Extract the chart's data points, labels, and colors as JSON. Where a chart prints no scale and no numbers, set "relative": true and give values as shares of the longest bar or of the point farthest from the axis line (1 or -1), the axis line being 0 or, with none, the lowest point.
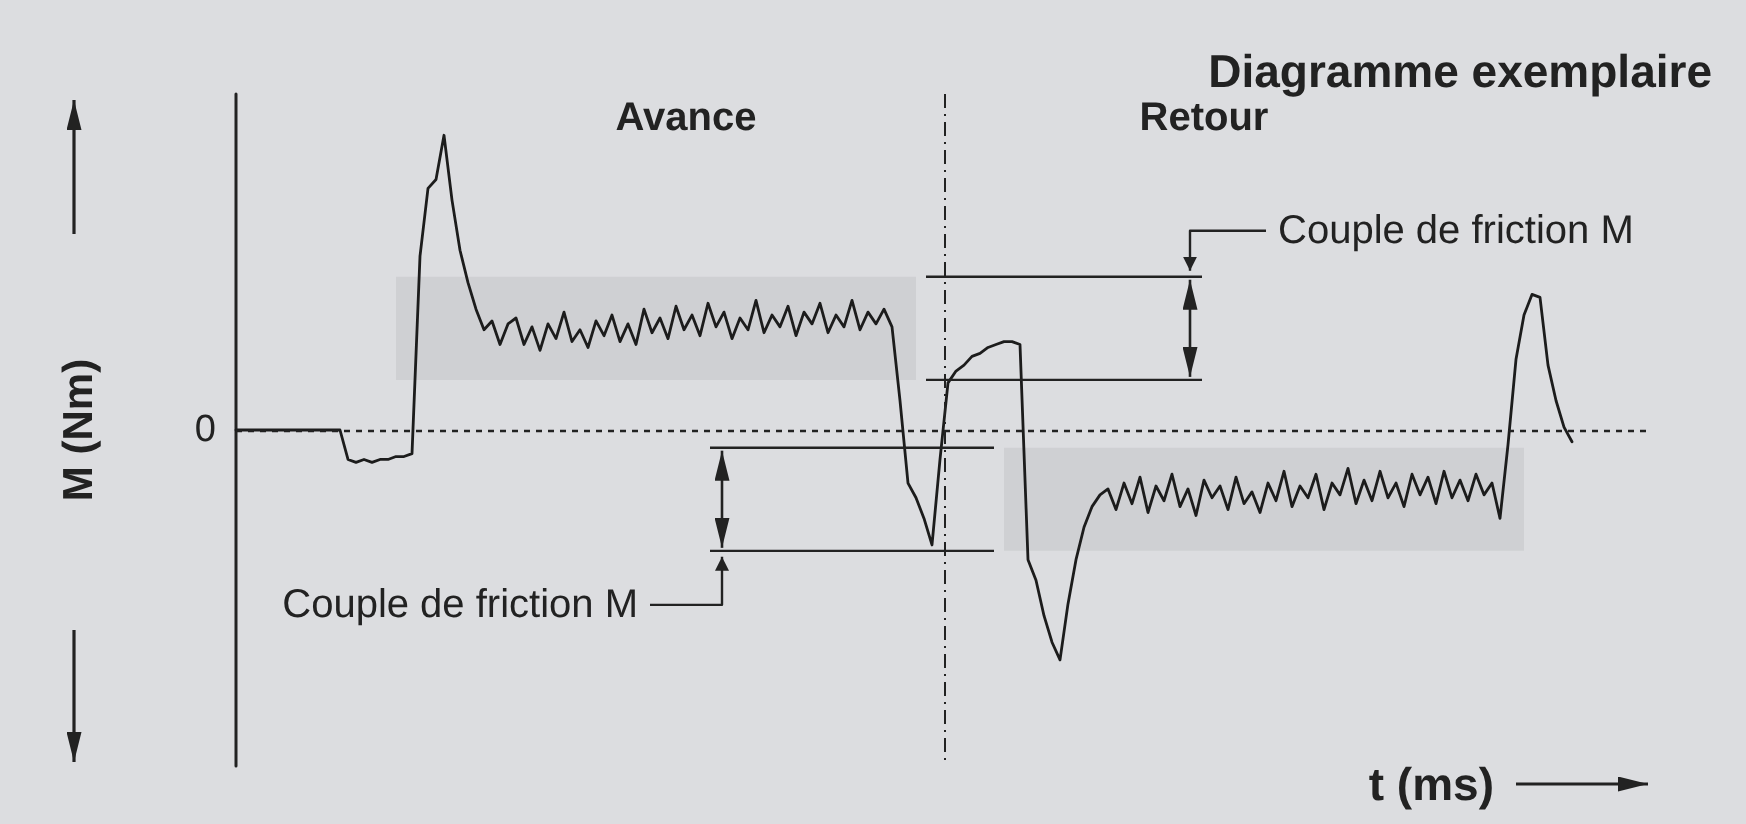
{
  "chart_data": {
    "type": "line",
    "title": "Diagramme exemplaire",
    "xlabel": "t (ms)",
    "ylabel": "M (Nm)",
    "annotations": [
      "Avance",
      "Retour",
      "Couple de friction M",
      "Couple de friction M"
    ],
    "relative": true,
    "color": "#1c1c1c",
    "categories": [
      null,
      null,
      null,
      null,
      null,
      null,
      null,
      null,
      null,
      null,
      null,
      null,
      null,
      null,
      null,
      null,
      null,
      null,
      null,
      null,
      null,
      null,
      null,
      null,
      null,
      null,
      null,
      null,
      null,
      null,
      null,
      null,
      null,
      null,
      null,
      null,
      null,
      null,
      null,
      null,
      null,
      null,
      null,
      null,
      null,
      null,
      null,
      null,
      null,
      null,
      null,
      null,
      null,
      null,
      null,
      null,
      null,
      null,
      null,
      null,
      null,
      null,
      null,
      null,
      null,
      null,
      null,
      null,
      null,
      null,
      null,
      null,
      null,
      null,
      null,
      null,
      null,
      null,
      null,
      null,
      null,
      null,
      null,
      null,
      null,
      null,
      null,
      null,
      null,
      null,
      null,
      null,
      null,
      null,
      null,
      null,
      null,
      null,
      null,
      null,
      null,
      null,
      null,
      null,
      null,
      null,
      null,
      null,
      null,
      null,
      null,
      null,
      null,
      null,
      null,
      null,
      null,
      null,
      null,
      null,
      null,
      null,
      null,
      null,
      null,
      null,
      null,
      null,
      null,
      null,
      null,
      null,
      null,
      null,
      null,
      null,
      null,
      null,
      null,
      null,
      null,
      null,
      null,
      null,
      null,
      null,
      null,
      null,
      null,
      null,
      null,
      null,
      null,
      null,
      null,
      null,
      null,
      null,
      null,
      null,
      null,
      null,
      null,
      null,
      null,
      null,
      null,
      null,
      null,
      null,
      null,
      null,
      null,
      null,
      null,
      null,
      null,
      null
    ],
    "values": [
      0,
      0,
      0,
      0,
      0,
      0,
      0,
      0,
      0,
      0,
      0,
      0,
      0,
      0,
      -0.1,
      -0.11,
      -0.1,
      -0.11,
      -0.1,
      -0.1,
      -0.09,
      -0.09,
      -0.08,
      0.59,
      0.82,
      0.85,
      1,
      0.78,
      0.61,
      0.5,
      0.41,
      0.34,
      0.37,
      0.29,
      0.36,
      0.38,
      0.29,
      0.35,
      0.27,
      0.36,
      0.31,
      0.4,
      0.3,
      0.34,
      0.28,
      0.37,
      0.32,
      0.39,
      0.3,
      0.36,
      0.29,
      0.41,
      0.33,
      0.38,
      0.31,
      0.42,
      0.34,
      0.39,
      0.32,
      0.43,
      0.35,
      0.4,
      0.31,
      0.38,
      0.34,
      0.44,
      0.33,
      0.39,
      0.35,
      0.42,
      0.32,
      0.4,
      0.36,
      0.43,
      0.33,
      0.39,
      0.35,
      0.44,
      0.34,
      0.4,
      0.36,
      0.41,
      0.35,
      0.1,
      -0.18,
      -0.23,
      -0.3,
      -0.39,
      -0.1,
      0.16,
      0.2,
      0.22,
      0.25,
      0.26,
      0.28,
      0.29,
      0.3,
      0.3,
      0.29,
      -0.44,
      -0.51,
      -0.63,
      -0.72,
      -0.78,
      -0.59,
      -0.44,
      -0.33,
      -0.26,
      -0.22,
      -0.2,
      -0.27,
      -0.18,
      -0.25,
      -0.16,
      -0.28,
      -0.19,
      -0.24,
      -0.15,
      -0.26,
      -0.2,
      -0.29,
      -0.17,
      -0.23,
      -0.19,
      -0.27,
      -0.16,
      -0.25,
      -0.21,
      -0.28,
      -0.18,
      -0.24,
      -0.14,
      -0.26,
      -0.19,
      -0.23,
      -0.15,
      -0.27,
      -0.18,
      -0.22,
      -0.13,
      -0.25,
      -0.17,
      -0.24,
      -0.14,
      -0.23,
      -0.18,
      -0.26,
      -0.15,
      -0.22,
      -0.16,
      -0.25,
      -0.14,
      -0.23,
      -0.17,
      -0.24,
      -0.15,
      -0.22,
      -0.18,
      -0.3,
      -0.05,
      0.24,
      0.39,
      0.46,
      0.45,
      0.22,
      0.1,
      0.01,
      -0.04,
      null,
      null,
      null,
      null,
      null,
      null,
      null,
      null,
      null,
      null
    ],
    "ref_lines": [
      {
        "axis": "y",
        "value": 0,
        "label": "0",
        "line_style": "dotted"
      }
    ],
    "bands": [
      {
        "axis": "y",
        "from": 0.17,
        "to": 0.52,
        "color": "#cfd0d3"
      },
      {
        "axis": "y",
        "from": -0.41,
        "to": -0.06,
        "color": "#cfd0d3"
      }
    ]
  }
}
